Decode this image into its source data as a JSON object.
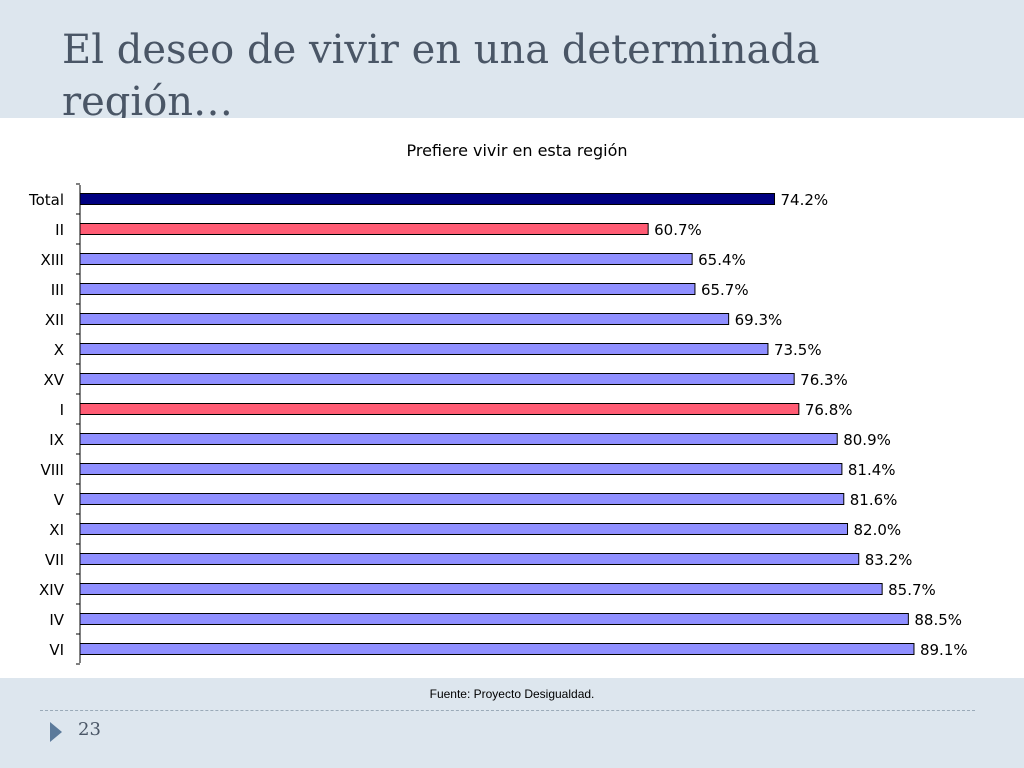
{
  "slide": {
    "title": "El deseo de vivir en una determinada región…",
    "source": "Fuente: Proyecto Desigualdad.",
    "page_number": "23"
  },
  "colors": {
    "background": "#dde6ee",
    "total_bar": "#000080",
    "highlight_bar": "#ff5c74",
    "regular_bar": "#8f8fff"
  },
  "chart_data": {
    "type": "bar",
    "orientation": "horizontal",
    "title": "Prefiere vivir en esta región",
    "categories": [
      "Total",
      "II",
      "XIII",
      "III",
      "XII",
      "X",
      "XV",
      "I",
      "IX",
      "VIII",
      "V",
      "XI",
      "VII",
      "XIV",
      "IV",
      "VI"
    ],
    "values": [
      74.2,
      60.7,
      65.4,
      65.7,
      69.3,
      73.5,
      76.3,
      76.8,
      80.9,
      81.4,
      81.6,
      82.0,
      83.2,
      85.7,
      88.5,
      89.1
    ],
    "value_labels": [
      "74.2%",
      "60.7%",
      "65.4%",
      "65.7%",
      "69.3%",
      "73.5%",
      "76.3%",
      "76.8%",
      "80.9%",
      "81.4%",
      "81.6%",
      "82.0%",
      "83.2%",
      "85.7%",
      "88.5%",
      "89.1%"
    ],
    "bar_kind": [
      "total",
      "highlight",
      "regular",
      "regular",
      "regular",
      "regular",
      "regular",
      "highlight",
      "regular",
      "regular",
      "regular",
      "regular",
      "regular",
      "regular",
      "regular",
      "regular"
    ],
    "xlim": [
      0,
      100
    ],
    "grid": false,
    "legend": "none"
  }
}
